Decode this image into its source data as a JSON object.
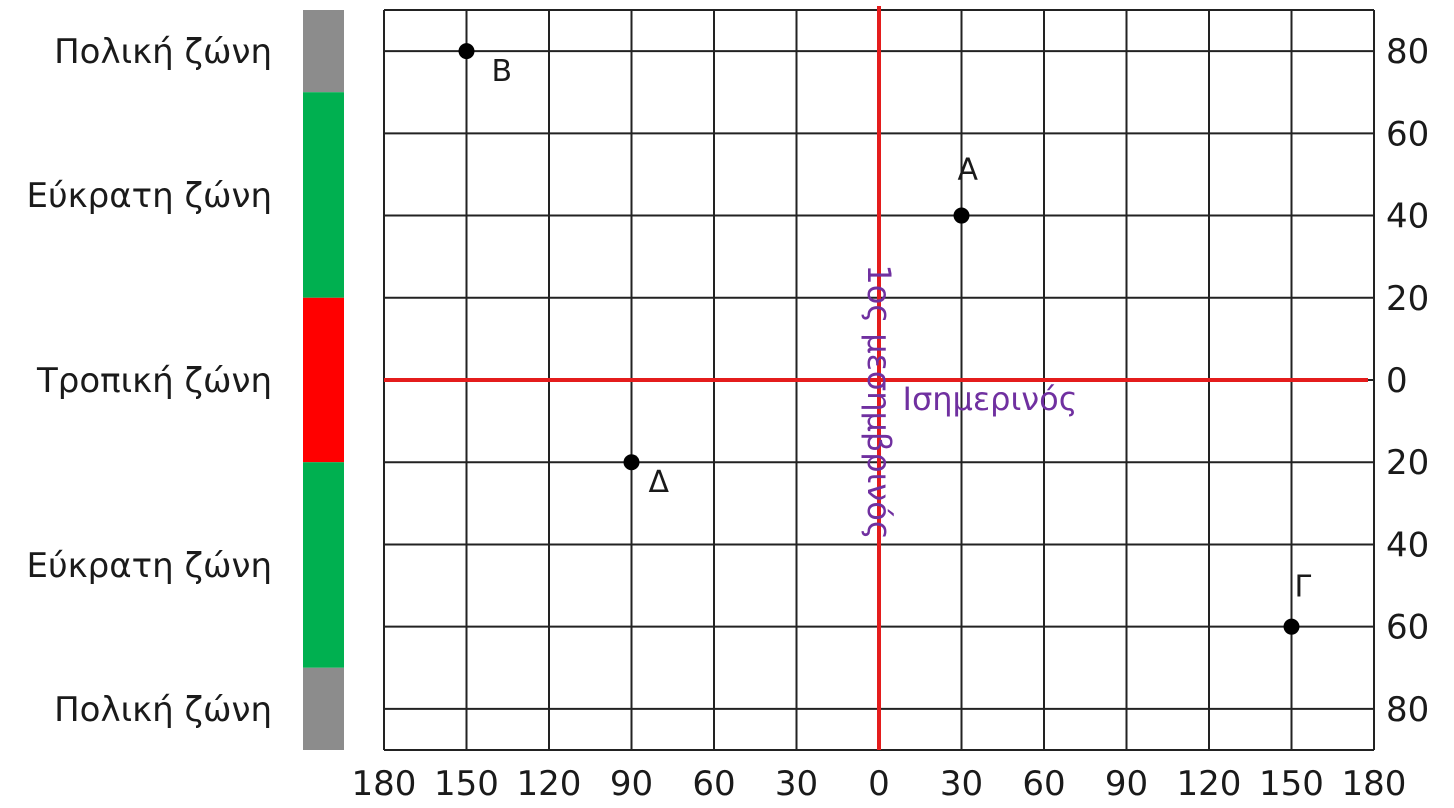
{
  "colors": {
    "polar": "#8c8c8c",
    "temperate": "#00b050",
    "tropical": "#ff0000",
    "reference_lines": "#e41c1c",
    "line_labels": "#7030a0",
    "grid": "#222222"
  },
  "zones": [
    {
      "id": "north-polar",
      "label": "Πολική ζώνη",
      "color": "polar",
      "lat_from": 90,
      "lat_to": 70
    },
    {
      "id": "north-temperate",
      "label": "Εύκρατη ζώνη",
      "color": "temperate",
      "lat_from": 70,
      "lat_to": 20
    },
    {
      "id": "tropical",
      "label": "Τροπική ζώνη",
      "color": "tropical",
      "lat_from": 20,
      "lat_to": -20
    },
    {
      "id": "south-temperate",
      "label": "Εύκρατη ζώνη",
      "color": "temperate",
      "lat_from": -20,
      "lat_to": -70
    },
    {
      "id": "south-polar",
      "label": "Πολική ζώνη",
      "color": "polar",
      "lat_from": -70,
      "lat_to": -90
    }
  ],
  "longitude_ticks": [
    {
      "value": -180,
      "label": "180"
    },
    {
      "value": -150,
      "label": "150"
    },
    {
      "value": -120,
      "label": "120"
    },
    {
      "value": -90,
      "label": "90"
    },
    {
      "value": -60,
      "label": "60"
    },
    {
      "value": -30,
      "label": "30"
    },
    {
      "value": 0,
      "label": "0"
    },
    {
      "value": 30,
      "label": "30"
    },
    {
      "value": 60,
      "label": "60"
    },
    {
      "value": 90,
      "label": "90"
    },
    {
      "value": 120,
      "label": "120"
    },
    {
      "value": 150,
      "label": "150"
    },
    {
      "value": 180,
      "label": "180"
    }
  ],
  "latitude_ticks": [
    {
      "value": 80,
      "label": "80"
    },
    {
      "value": 60,
      "label": "60"
    },
    {
      "value": 40,
      "label": "40"
    },
    {
      "value": 20,
      "label": "20"
    },
    {
      "value": 0,
      "label": "0"
    },
    {
      "value": -20,
      "label": "20"
    },
    {
      "value": -40,
      "label": "40"
    },
    {
      "value": -60,
      "label": "60"
    },
    {
      "value": -80,
      "label": "80"
    }
  ],
  "equator_label": "Ισημερινός",
  "meridian_label": "1ος μεσημβρινός",
  "points": [
    {
      "name": "B",
      "lon": -150,
      "lat": 80
    },
    {
      "name": "A",
      "lon": 30,
      "lat": 40
    },
    {
      "name": "Δ",
      "lon": -90,
      "lat": -20
    },
    {
      "name": "Γ",
      "lon": 150,
      "lat": -60
    }
  ]
}
